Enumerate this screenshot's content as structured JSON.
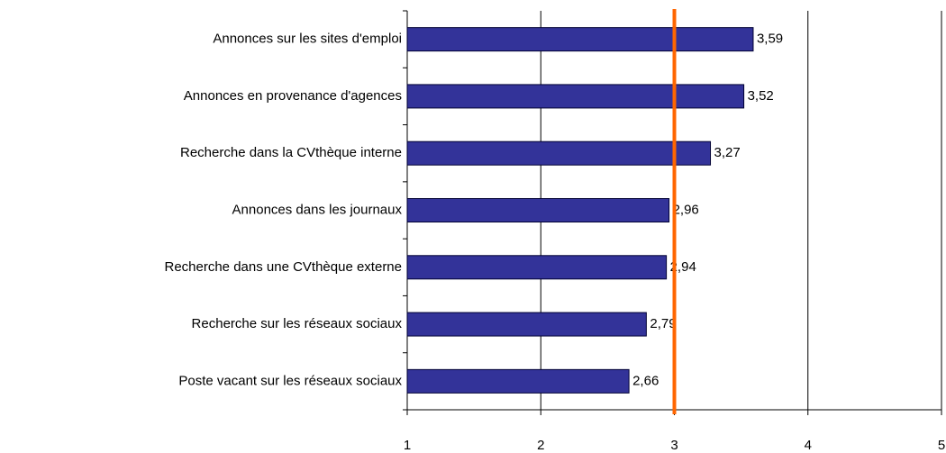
{
  "chart_data": {
    "type": "barh",
    "categories": [
      "Annonces sur les sites d'emploi",
      "Annonces en provenance d'agences",
      "Recherche dans la CVthèque interne",
      "Annonces dans les journaux",
      "Recherche dans une CVthèque externe",
      "Recherche sur les réseaux sociaux",
      "Poste vacant sur les réseaux sociaux"
    ],
    "values": [
      3.59,
      3.52,
      3.27,
      2.96,
      2.94,
      2.79,
      2.66
    ],
    "value_labels": [
      "3,59",
      "3,52",
      "3,27",
      "2,96",
      "2,94",
      "2,79",
      "2,66"
    ],
    "color": "#333399",
    "xlim": [
      1,
      5
    ],
    "xticks": [
      1,
      2,
      3,
      4,
      5
    ],
    "grid": true,
    "reference_line": {
      "value": 3,
      "color": "#ff6600"
    }
  }
}
